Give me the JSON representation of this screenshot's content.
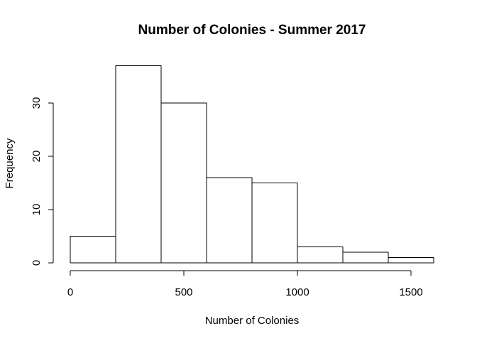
{
  "chart_data": {
    "type": "bar",
    "title": "Number of Colonies - Summer 2017",
    "xlabel": "Number of Colonies",
    "ylabel": "Frequency",
    "bins": [
      {
        "start": 0,
        "end": 200,
        "count": 5
      },
      {
        "start": 200,
        "end": 400,
        "count": 37
      },
      {
        "start": 400,
        "end": 600,
        "count": 30
      },
      {
        "start": 600,
        "end": 800,
        "count": 16
      },
      {
        "start": 800,
        "end": 1000,
        "count": 15
      },
      {
        "start": 1000,
        "end": 1200,
        "count": 3
      },
      {
        "start": 1200,
        "end": 1400,
        "count": 2
      },
      {
        "start": 1400,
        "end": 1600,
        "count": 1
      }
    ],
    "x_ticks": [
      "0",
      "500",
      "1000",
      "1500"
    ],
    "x_tick_values": [
      0,
      500,
      1000,
      1500
    ],
    "y_ticks": [
      "0",
      "10",
      "20",
      "30"
    ],
    "y_tick_values": [
      0,
      10,
      20,
      30
    ],
    "xlim": [
      0,
      1600
    ],
    "ylim": [
      0,
      37
    ],
    "grid": false,
    "legend": "none",
    "colors": {
      "bar_fill": "#ffffff",
      "bar_stroke": "#000000",
      "axis": "#000000",
      "background": "#ffffff"
    }
  }
}
